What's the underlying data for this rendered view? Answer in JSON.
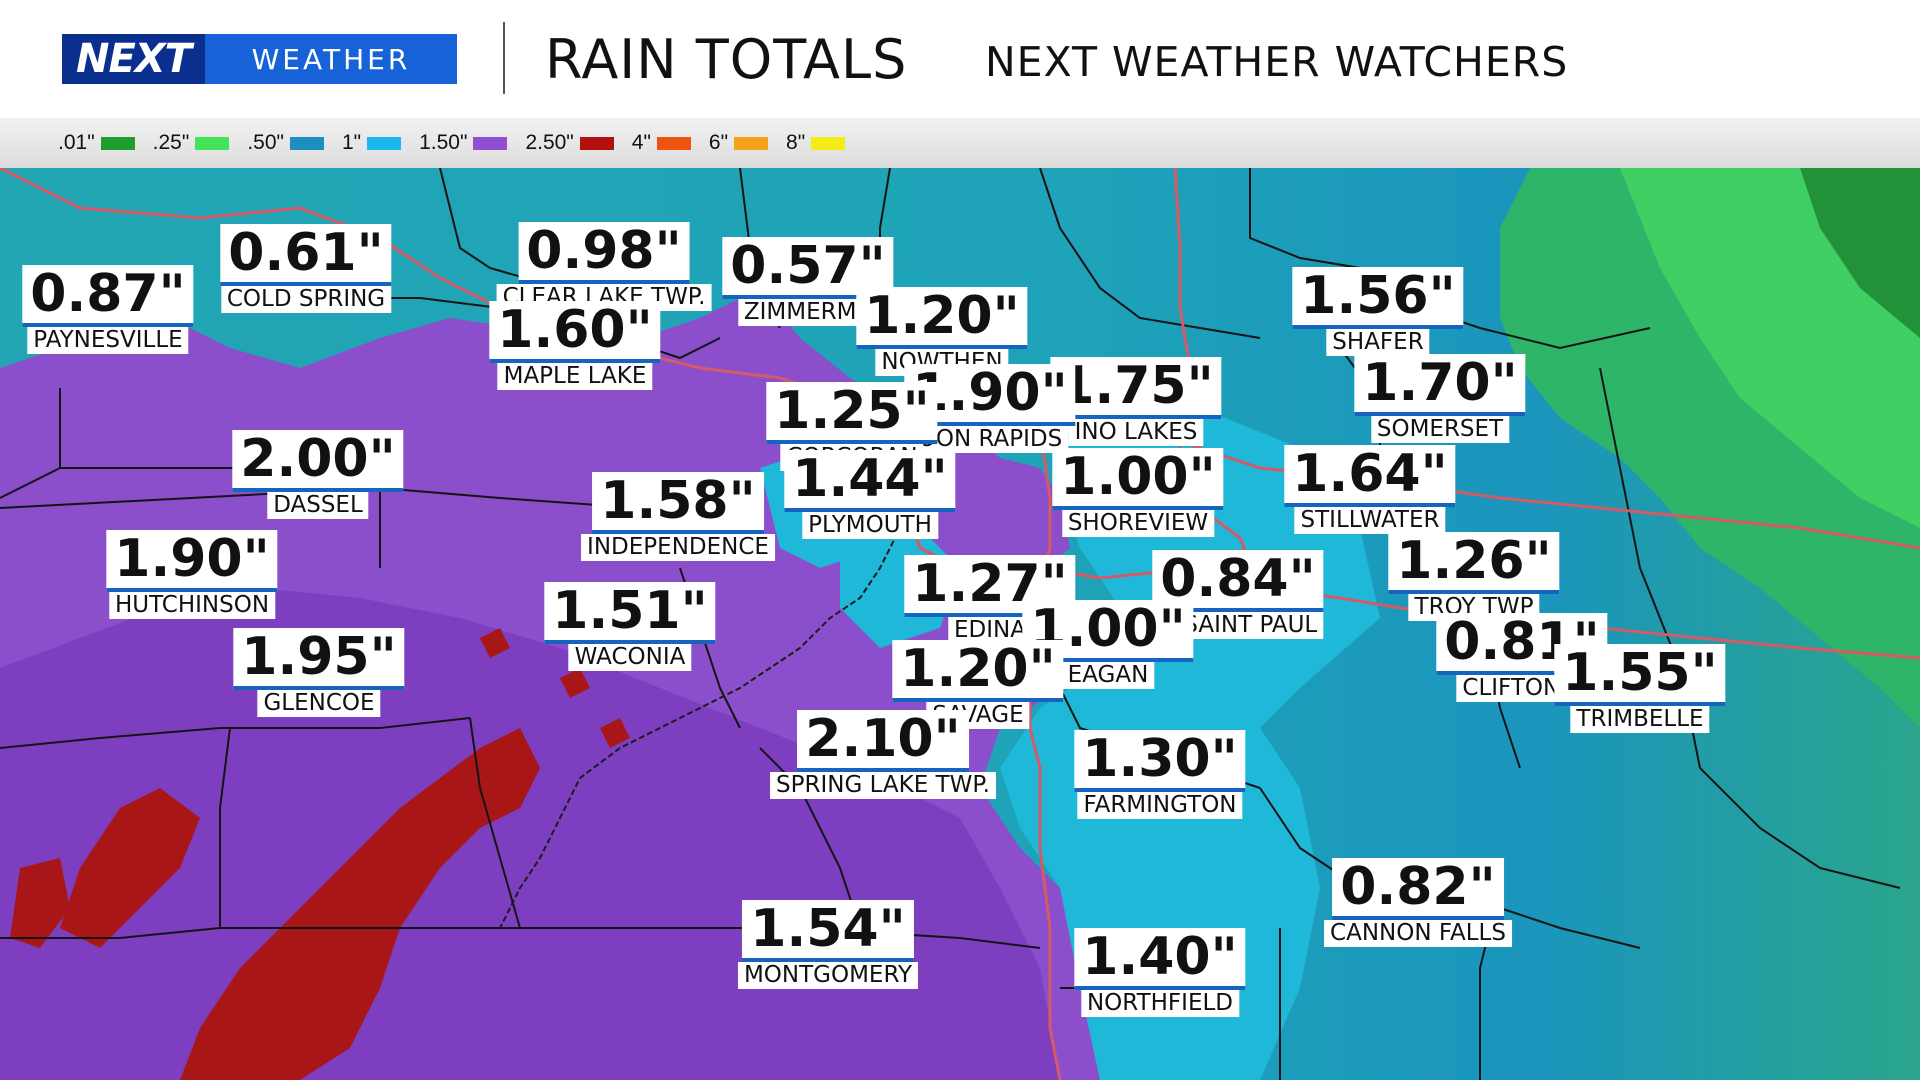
{
  "header": {
    "logo_next": "NEXT",
    "logo_weather": "WEATHER",
    "title": "RAIN TOTALS",
    "subtitle": "NEXT WEATHER WATCHERS"
  },
  "legend": [
    {
      "label": ".01\"",
      "color": "#1f9e2e"
    },
    {
      "label": ".25\"",
      "color": "#44e35a"
    },
    {
      "label": ".50\"",
      "color": "#1e8ec0"
    },
    {
      "label": "1\"",
      "color": "#19b9ec"
    },
    {
      "label": "1.50\"",
      "color": "#8f4fd0"
    },
    {
      "label": "2.50\"",
      "color": "#b3100f"
    },
    {
      "label": "4\"",
      "color": "#f0520f"
    },
    {
      "label": "6\"",
      "color": "#f3a01a"
    },
    {
      "label": "8\"",
      "color": "#f4ec14"
    }
  ],
  "locations": [
    {
      "amount": "0.87\"",
      "place": "PAYNESVILLE"
    },
    {
      "amount": "0.61\"",
      "place": "COLD SPRING"
    },
    {
      "amount": "0.98\"",
      "place": "CLEAR LAKE TWP."
    },
    {
      "amount": "0.57\"",
      "place": "ZIMMERMA"
    },
    {
      "amount": "1.20\"",
      "place": "NOWTHEN"
    },
    {
      "amount": "1.56\"",
      "place": "SHAFER"
    },
    {
      "amount": "1.60\"",
      "place": "MAPLE LAKE"
    },
    {
      "amount": "1.75\"",
      "place": "INO LAKES"
    },
    {
      "amount": "1.90\"",
      "place": "OON RAPIDS"
    },
    {
      "amount": "1.25\"",
      "place": "CORCORAN"
    },
    {
      "amount": "1.70\"",
      "place": "SOMERSET"
    },
    {
      "amount": "2.00\"",
      "place": "DASSEL"
    },
    {
      "amount": "1.44\"",
      "place": "PLYMOUTH"
    },
    {
      "amount": "1.00\"",
      "place": "SHOREVIEW"
    },
    {
      "amount": "1.64\"",
      "place": "STILLWATER"
    },
    {
      "amount": "1.58\"",
      "place": "INDEPENDENCE"
    },
    {
      "amount": "1.90\"",
      "place": "HUTCHINSON"
    },
    {
      "amount": "1.27\"",
      "place": "EDINA"
    },
    {
      "amount": "0.84\"",
      "place": "H SAINT PAUL"
    },
    {
      "amount": "1.26\"",
      "place": "TROY TWP"
    },
    {
      "amount": "1.51\"",
      "place": "WACONIA"
    },
    {
      "amount": "1.00\"",
      "place": "EAGAN"
    },
    {
      "amount": "0.81\"",
      "place": "CLIFTON T"
    },
    {
      "amount": "1.95\"",
      "place": "GLENCOE"
    },
    {
      "amount": "1.20\"",
      "place": "SAVAGE"
    },
    {
      "amount": "1.55\"",
      "place": "TRIMBELLE"
    },
    {
      "amount": "2.10\"",
      "place": "SPRING LAKE TWP."
    },
    {
      "amount": "1.30\"",
      "place": "FARMINGTON"
    },
    {
      "amount": "0.82\"",
      "place": "CANNON FALLS"
    },
    {
      "amount": "1.54\"",
      "place": "MONTGOMERY"
    },
    {
      "amount": "1.40\"",
      "place": "NORTHFIELD"
    }
  ]
}
